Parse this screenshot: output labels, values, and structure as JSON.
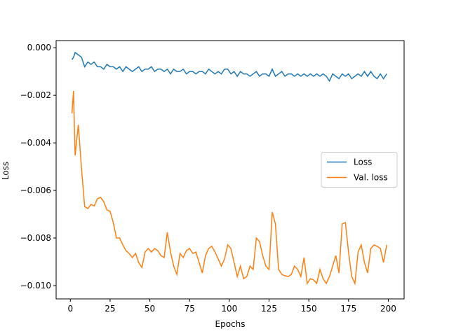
{
  "chart_data": {
    "type": "line",
    "x_label": "Epochs",
    "y_label": "Loss",
    "x": [
      1,
      2,
      3,
      5,
      7,
      9,
      11,
      13,
      15,
      17,
      19,
      21,
      23,
      25,
      27,
      29,
      31,
      33,
      35,
      37,
      39,
      41,
      43,
      45,
      47,
      49,
      51,
      53,
      55,
      57,
      59,
      61,
      63,
      65,
      67,
      69,
      71,
      73,
      75,
      77,
      79,
      81,
      83,
      85,
      87,
      89,
      91,
      93,
      95,
      97,
      99,
      101,
      103,
      105,
      107,
      109,
      111,
      113,
      115,
      117,
      119,
      121,
      123,
      125,
      127,
      129,
      131,
      133,
      135,
      137,
      139,
      141,
      143,
      145,
      147,
      149,
      151,
      153,
      155,
      157,
      159,
      161,
      163,
      165,
      167,
      169,
      171,
      173,
      175,
      177,
      179,
      181,
      183,
      185,
      187,
      189,
      191,
      193,
      195,
      197,
      199
    ],
    "series": [
      {
        "name": "Loss",
        "color": "#1f77b4",
        "values": [
          -0.0005,
          -0.0004,
          -0.0002,
          -0.0003,
          -0.0004,
          -0.0008,
          -0.0006,
          -0.0007,
          -0.0006,
          -0.0008,
          -0.0008,
          -0.0009,
          -0.0007,
          -0.0008,
          -0.0008,
          -0.0009,
          -0.0008,
          -0.001,
          -0.0008,
          -0.0009,
          -0.001,
          -0.0009,
          -0.0008,
          -0.001,
          -0.0009,
          -0.0009,
          -0.0008,
          -0.001,
          -0.0009,
          -0.0009,
          -0.001,
          -0.0009,
          -0.0011,
          -0.0009,
          -0.001,
          -0.001,
          -0.0009,
          -0.0011,
          -0.001,
          -0.001,
          -0.0011,
          -0.001,
          -0.001,
          -0.0011,
          -0.0009,
          -0.001,
          -0.0011,
          -0.001,
          -0.0011,
          -0.0009,
          -0.0009,
          -0.0011,
          -0.001,
          -0.0012,
          -0.001,
          -0.0011,
          -0.0011,
          -0.0012,
          -0.0011,
          -0.001,
          -0.0012,
          -0.0011,
          -0.0011,
          -0.0012,
          -0.0009,
          -0.0012,
          -0.0011,
          -0.001,
          -0.0012,
          -0.0011,
          -0.0011,
          -0.0012,
          -0.0011,
          -0.0012,
          -0.0011,
          -0.0012,
          -0.0011,
          -0.0012,
          -0.0011,
          -0.0012,
          -0.0011,
          -0.0012,
          -0.0014,
          -0.0011,
          -0.0012,
          -0.0013,
          -0.0011,
          -0.0012,
          -0.0011,
          -0.0013,
          -0.0012,
          -0.0011,
          -0.0012,
          -0.001,
          -0.0012,
          -0.001,
          -0.0012,
          -0.0013,
          -0.0011,
          -0.0013,
          -0.0011
        ]
      },
      {
        "name": "Val. loss",
        "color": "#ff7f0e",
        "values": [
          -0.00276,
          -0.00182,
          -0.00453,
          -0.00324,
          -0.00506,
          -0.00668,
          -0.00676,
          -0.00659,
          -0.00665,
          -0.00635,
          -0.00629,
          -0.00647,
          -0.00682,
          -0.00688,
          -0.00735,
          -0.008,
          -0.008,
          -0.00829,
          -0.00853,
          -0.00865,
          -0.00882,
          -0.00865,
          -0.00903,
          -0.00924,
          -0.00859,
          -0.00844,
          -0.00859,
          -0.00844,
          -0.00853,
          -0.00874,
          -0.00882,
          -0.00776,
          -0.00859,
          -0.00918,
          -0.00953,
          -0.00865,
          -0.00882,
          -0.00853,
          -0.00844,
          -0.00865,
          -0.00859,
          -0.00903,
          -0.00947,
          -0.00874,
          -0.00844,
          -0.00835,
          -0.00859,
          -0.00888,
          -0.00918,
          -0.00888,
          -0.00829,
          -0.00844,
          -0.00903,
          -0.00962,
          -0.00918,
          -0.00971,
          -0.00962,
          -0.00918,
          -0.00932,
          -0.008,
          -0.00815,
          -0.00874,
          -0.00918,
          -0.00932,
          -0.00691,
          -0.00741,
          -0.00932,
          -0.00953,
          -0.00959,
          -0.00962,
          -0.00953,
          -0.00918,
          -0.00932,
          -0.00962,
          -0.00882,
          -0.00991,
          -0.00971,
          -0.00976,
          -0.00991,
          -0.00932,
          -0.00971,
          -0.00991,
          -0.00962,
          -0.00918,
          -0.00874,
          -0.00947,
          -0.00741,
          -0.00735,
          -0.00859,
          -0.00962,
          -0.00991,
          -0.00859,
          -0.00829,
          -0.00903,
          -0.00947,
          -0.00844,
          -0.00829,
          -0.00835,
          -0.00844,
          -0.00903,
          -0.00829
        ]
      }
    ],
    "xlim": [
      -8.95,
      209.95
    ],
    "ylim": [
      -0.01056,
      0.0003
    ],
    "xticks": [
      0,
      25,
      50,
      75,
      100,
      125,
      150,
      175,
      200
    ],
    "yticks": [
      {
        "value": 0,
        "label": "0.000"
      },
      {
        "value": -0.002,
        "label": "−0.002"
      },
      {
        "value": -0.004,
        "label": "−0.004"
      },
      {
        "value": -0.006,
        "label": "−0.006"
      },
      {
        "value": -0.008,
        "label": "−0.008"
      },
      {
        "value": -0.01,
        "label": "−0.010"
      }
    ],
    "legend": "center right"
  }
}
